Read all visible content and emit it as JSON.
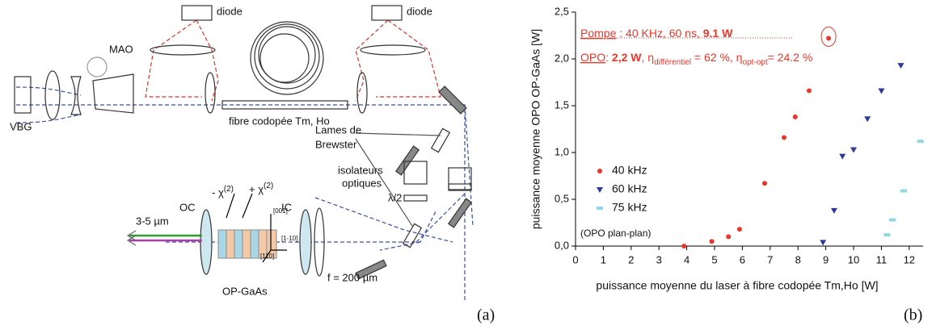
{
  "diagram": {
    "diode_left": "diode",
    "diode_right": "diode",
    "mao": "MAO",
    "vbg": "VBG",
    "fiber": "fibre codopée Tm, Ho",
    "brewster": [
      "Lames de",
      "Brewster"
    ],
    "isolators": [
      "isolateurs",
      "optiques"
    ],
    "half_wave": "λ/2",
    "oc": "OC",
    "ic": "IC",
    "output": "3-5 µm",
    "crystal": "OP-GaAs",
    "focal": "f = 200 µm",
    "chi_minus": [
      "- χ",
      "(2)"
    ],
    "chi_plus": [
      "+ χ",
      "(2)"
    ],
    "axes": [
      "[001]",
      "[1-10]",
      "[110]"
    ]
  },
  "chart_data": {
    "type": "scatter",
    "xlabel": "puissance moyenne du laser à fibre codopée Tm,Ho [W]",
    "ylabel": "puissance moyenne OPO OP-GaAs [W]",
    "xlim": [
      0,
      12.5
    ],
    "ylim": [
      0,
      2.5
    ],
    "xticks": [
      0,
      1,
      2,
      3,
      4,
      5,
      6,
      7,
      8,
      9,
      10,
      11,
      12
    ],
    "yticks": [
      {
        "value": 0,
        "label": "0,0"
      },
      {
        "value": 0.5,
        "label": "0,5"
      },
      {
        "value": 1,
        "label": "1,0"
      },
      {
        "value": 1.5,
        "label": "1,5"
      },
      {
        "value": 2,
        "label": "2,0"
      },
      {
        "value": 2.5,
        "label": "2,5"
      }
    ],
    "legend": "left",
    "series": [
      {
        "name": "40 kHz",
        "color": "#e8372b",
        "marker": "circle",
        "x": [
          3.9,
          4.9,
          5.5,
          5.9,
          6.8,
          7.5,
          7.9,
          8.4,
          9.1
        ],
        "values": [
          0.0,
          0.05,
          0.1,
          0.18,
          0.67,
          1.16,
          1.38,
          1.66,
          2.22
        ]
      },
      {
        "name": "60 kHz",
        "color": "#2b3a9a",
        "marker": "triangle",
        "x": [
          8.9,
          9.3,
          9.6,
          10.0,
          10.5,
          11.0,
          11.7
        ],
        "values": [
          0.04,
          0.38,
          0.96,
          1.03,
          1.36,
          1.66,
          1.93
        ]
      },
      {
        "name": "75 kHz",
        "color": "#8fd8e8",
        "marker": "star",
        "x": [
          11.2,
          11.4,
          11.8,
          12.4
        ],
        "values": [
          0.12,
          0.28,
          0.59,
          1.12
        ]
      }
    ],
    "annotations": {
      "pump": [
        "Pompe",
        " : 40 KHz,  60 ns,  ",
        "9.1 W"
      ],
      "opo": [
        "OPO",
        ": ",
        "2,2 W",
        ", η",
        "différentiel",
        " = 62 %, η",
        "opt-opt",
        "= 24.2 %"
      ],
      "note": "(OPO plan-plan)"
    }
  },
  "captions": [
    "(a)",
    "(b)"
  ]
}
